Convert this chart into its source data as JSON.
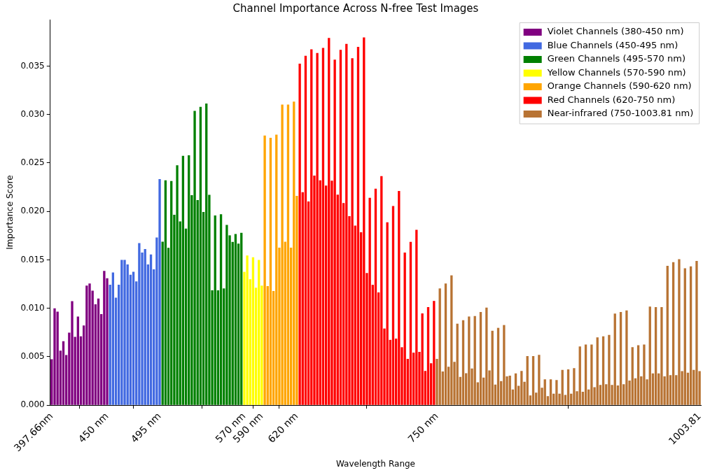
{
  "chart_data": {
    "type": "bar",
    "stacked": true,
    "title": "Channel Importance Across N-free Test Images",
    "xlabel": "Wavelength Range",
    "ylabel": "Importance Score",
    "legend": "top right",
    "categories": [
      "397.66nm",
      null,
      null,
      null,
      null,
      null,
      null,
      null,
      null,
      null,
      null,
      null,
      null,
      null,
      null,
      null,
      null,
      null,
      null,
      "450 nm",
      null,
      null,
      null,
      null,
      null,
      null,
      null,
      null,
      null,
      null,
      null,
      null,
      null,
      null,
      null,
      null,
      null,
      "495 nm",
      null,
      null,
      null,
      null,
      null,
      null,
      null,
      null,
      null,
      null,
      null,
      null,
      null,
      null,
      null,
      null,
      null,
      null,
      null,
      null,
      null,
      null,
      null,
      null,
      null,
      null,
      null,
      null,
      "570 nm",
      null,
      null,
      null,
      null,
      null,
      "590 nm",
      null,
      null,
      null,
      null,
      null,
      null,
      null,
      null,
      null,
      null,
      null,
      "620 nm",
      null,
      null,
      null,
      null,
      null,
      null,
      null,
      null,
      null,
      null,
      null,
      null,
      null,
      null,
      null,
      null,
      null,
      null,
      null,
      null,
      null,
      null,
      null,
      null,
      null,
      null,
      null,
      null,
      null,
      null,
      null,
      null,
      null,
      null,
      null,
      null,
      null,
      null,
      null,
      null,
      null,
      null,
      null,
      null,
      null,
      null,
      null,
      "750 nm",
      null,
      null,
      null,
      null,
      null,
      null,
      null,
      null,
      null,
      null,
      null,
      null,
      null,
      null,
      null,
      null,
      null,
      null,
      null,
      null,
      null,
      null,
      null,
      null,
      null,
      null,
      null,
      null,
      null,
      null,
      null,
      null,
      null,
      null,
      null,
      null,
      null,
      null,
      null,
      null,
      null,
      null,
      null,
      null,
      null,
      null,
      null,
      null,
      null,
      null,
      null,
      null,
      null,
      null,
      null,
      null,
      null,
      null,
      null,
      null,
      null,
      null,
      null,
      null,
      null,
      null,
      null,
      null,
      null,
      null,
      null,
      null,
      null,
      null,
      null,
      null,
      null,
      null,
      null,
      null,
      null,
      null,
      null,
      null,
      null,
      null,
      null,
      null,
      null,
      "1003.81"
    ],
    "ylim": [
      0,
      0.0398
    ],
    "yticks": [
      {
        "value": 0,
        "label": "0.000"
      },
      {
        "value": 0.005,
        "label": "0.005"
      },
      {
        "value": 0.01,
        "label": "0.010"
      },
      {
        "value": 0.015,
        "label": "0.015"
      },
      {
        "value": 0.02,
        "label": "0.020"
      },
      {
        "value": 0.025,
        "label": "0.025"
      },
      {
        "value": 0.03,
        "label": "0.030"
      },
      {
        "value": 0.035,
        "label": "0.035"
      }
    ],
    "series": [
      {
        "name": "Violet Channels (380-450 nm)",
        "color": "#800080",
        "values": [
          0.00475,
          0.01,
          0.00965,
          0.00563,
          0.00661,
          0.00518,
          0.00748,
          0.01074,
          0.00706,
          0.00915,
          0.0071,
          0.00822,
          0.01235,
          0.01255,
          0.01181,
          0.01041,
          0.011,
          0.0094,
          0.01385,
          0.0131,
          null,
          null,
          null,
          null,
          null,
          null,
          null,
          null,
          null,
          null,
          null,
          null,
          null,
          null,
          null,
          null,
          null,
          null,
          null,
          null,
          null,
          null,
          null,
          null,
          null,
          null,
          null,
          null,
          null,
          null,
          null,
          null,
          null,
          null,
          null,
          null,
          null,
          null,
          null,
          null,
          null,
          null,
          null,
          null,
          null,
          null,
          null,
          null,
          null,
          null,
          null,
          null,
          null,
          null,
          null,
          null,
          null,
          null,
          null,
          null,
          null,
          null,
          null,
          null,
          null,
          null,
          null,
          null,
          null,
          null,
          null,
          null,
          null,
          null,
          null,
          null,
          null,
          null,
          null,
          null,
          null,
          null,
          null,
          null,
          null,
          null,
          null,
          null,
          null,
          null,
          null,
          null,
          null,
          null,
          null,
          null,
          null,
          null,
          null,
          null,
          null,
          null,
          null,
          null,
          null,
          null,
          null,
          null,
          null,
          null,
          null,
          null,
          null,
          null,
          null,
          null,
          null,
          null,
          null,
          null,
          null,
          null,
          null,
          null,
          null,
          null,
          null,
          null,
          null,
          null,
          null,
          null,
          null,
          null,
          null,
          null,
          null,
          null,
          null,
          null,
          null,
          null,
          null,
          null,
          null,
          null,
          null,
          null,
          null,
          null,
          null,
          null,
          null,
          null,
          null,
          null,
          null,
          null,
          null,
          null,
          null,
          null,
          null,
          null,
          null,
          null,
          null,
          null,
          null,
          null,
          null,
          null,
          null,
          null,
          null,
          null,
          null,
          null,
          null,
          null,
          null,
          null,
          null,
          null,
          null,
          null,
          null,
          null,
          null,
          null,
          null,
          null,
          null,
          null,
          null,
          null,
          null,
          null,
          null,
          null,
          null,
          null,
          null
        ]
      },
      {
        "name": "Blue Channels (450-495 nm)",
        "color": "#4169e1",
        "values": [
          null,
          null,
          null,
          null,
          null,
          null,
          null,
          null,
          null,
          null,
          null,
          null,
          null,
          null,
          null,
          null,
          null,
          null,
          null,
          null,
          0.01243,
          0.0137,
          0.0111,
          0.01243,
          0.015,
          0.015,
          0.01452,
          0.01347,
          0.01376,
          0.01278,
          0.01673,
          0.01575,
          0.01611,
          0.01452,
          0.01556,
          0.01402,
          0.0173,
          0.02333,
          null,
          null,
          null,
          null,
          null,
          null,
          null,
          null,
          null,
          null,
          null,
          null,
          null,
          null,
          null,
          null,
          null,
          null,
          null,
          null,
          null,
          null,
          null,
          null,
          null,
          null,
          null,
          null,
          null,
          null,
          null,
          null,
          null,
          null,
          null,
          null,
          null,
          null,
          null,
          null,
          null,
          null,
          null,
          null,
          null,
          null,
          null,
          null,
          null,
          null,
          null,
          null,
          null,
          null,
          null,
          null,
          null,
          null,
          null,
          null,
          null,
          null,
          null,
          null,
          null,
          null,
          null,
          null,
          null,
          null,
          null,
          null,
          null,
          null,
          null,
          null,
          null,
          null,
          null,
          null,
          null,
          null,
          null,
          null,
          null,
          null,
          null,
          null,
          null,
          null,
          null,
          null,
          null,
          null,
          null,
          null,
          null,
          null,
          null,
          null,
          null,
          null,
          null,
          null,
          null,
          null,
          null,
          null,
          null,
          null,
          null,
          null,
          null,
          null,
          null,
          null,
          null,
          null,
          null,
          null,
          null,
          null,
          null,
          null,
          null,
          null,
          null,
          null,
          null,
          null,
          null,
          null,
          null,
          null,
          null,
          null,
          null,
          null,
          null,
          null,
          null,
          null,
          null,
          null,
          null,
          null,
          null,
          null,
          null,
          null,
          null,
          null,
          null,
          null,
          null,
          null,
          null,
          null,
          null,
          null,
          null,
          null,
          null,
          null,
          null,
          null,
          null,
          null,
          null,
          null,
          null,
          null,
          null,
          null,
          null,
          null,
          null,
          null,
          null,
          null,
          null,
          null,
          null,
          null,
          null
        ]
      },
      {
        "name": "Green Channels (495-570 nm)",
        "color": "#008000",
        "values": [
          null,
          null,
          null,
          null,
          null,
          null,
          null,
          null,
          null,
          null,
          null,
          null,
          null,
          null,
          null,
          null,
          null,
          null,
          null,
          null,
          null,
          null,
          null,
          null,
          null,
          null,
          null,
          null,
          null,
          null,
          null,
          null,
          null,
          null,
          null,
          null,
          null,
          null,
          0.01687,
          0.02321,
          0.01625,
          0.02314,
          0.01965,
          0.02476,
          0.01896,
          0.02573,
          0.01823,
          0.0258,
          0.02167,
          0.03037,
          0.02117,
          0.03079,
          0.01994,
          0.03113,
          0.02172,
          0.01186,
          0.01958,
          0.01186,
          0.0197,
          0.01205,
          0.0186,
          0.01753,
          0.01685,
          0.01766,
          0.01667,
          0.01779,
          null,
          null,
          null,
          null,
          null,
          null,
          null,
          null,
          null,
          null,
          null,
          null,
          null,
          null,
          null,
          null,
          null,
          null,
          null,
          null,
          null,
          null,
          null,
          null,
          null,
          null,
          null,
          null,
          null,
          null,
          null,
          null,
          null,
          null,
          null,
          null,
          null,
          null,
          null,
          null,
          null,
          null,
          null,
          null,
          null,
          null,
          null,
          null,
          null,
          null,
          null,
          null,
          null,
          null,
          null,
          null,
          null,
          null,
          null,
          null,
          null,
          null,
          null,
          null,
          null,
          null,
          null,
          null,
          null,
          null,
          null,
          null,
          null,
          null,
          null,
          null,
          null,
          null,
          null,
          null,
          null,
          null,
          null,
          null,
          null,
          null,
          null,
          null,
          null,
          null,
          null,
          null,
          null,
          null,
          null,
          null,
          null,
          null,
          null,
          null,
          null,
          null,
          null,
          null,
          null,
          null,
          null,
          null,
          null,
          null,
          null,
          null,
          null,
          null,
          null,
          null,
          null,
          null,
          null,
          null,
          null,
          null,
          null,
          null,
          null,
          null,
          null,
          null,
          null,
          null,
          null,
          null,
          null,
          null,
          null,
          null,
          null,
          null,
          null,
          null,
          null,
          null,
          null,
          null,
          null,
          null,
          null,
          null,
          null,
          null,
          null,
          null,
          null,
          null,
          null,
          null,
          null
        ]
      },
      {
        "name": "Yellow Channels (570-590 nm)",
        "color": "#ffff00",
        "values": [
          null,
          null,
          null,
          null,
          null,
          null,
          null,
          null,
          null,
          null,
          null,
          null,
          null,
          null,
          null,
          null,
          null,
          null,
          null,
          null,
          null,
          null,
          null,
          null,
          null,
          null,
          null,
          null,
          null,
          null,
          null,
          null,
          null,
          null,
          null,
          null,
          null,
          null,
          null,
          null,
          null,
          null,
          null,
          null,
          null,
          null,
          null,
          null,
          null,
          null,
          null,
          null,
          null,
          null,
          null,
          null,
          null,
          null,
          null,
          null,
          null,
          null,
          null,
          null,
          null,
          null,
          0.01376,
          0.01545,
          0.013,
          0.01527,
          0.01212,
          0.01499,
          0.01234,
          null,
          null,
          null,
          null,
          null,
          null,
          null,
          null,
          null,
          null,
          null,
          null,
          null,
          null,
          null,
          null,
          null,
          null,
          null,
          null,
          null,
          null,
          null,
          null,
          null,
          null,
          null,
          null,
          null,
          null,
          null,
          null,
          null,
          null,
          null,
          null,
          null,
          null,
          null,
          null,
          null,
          null,
          null,
          null,
          null,
          null,
          null,
          null,
          null,
          null,
          null,
          null,
          null,
          null,
          null,
          null,
          null,
          null,
          null,
          null,
          null,
          null,
          null,
          null,
          null,
          null,
          null,
          null,
          null,
          null,
          null,
          null,
          null,
          null,
          null,
          null,
          null,
          null,
          null,
          null,
          null,
          null,
          null,
          null,
          null,
          null,
          null,
          null,
          null,
          null,
          null,
          null,
          null,
          null,
          null,
          null,
          null,
          null,
          null,
          null,
          null,
          null,
          null,
          null,
          null,
          null,
          null,
          null,
          null,
          null,
          null,
          null,
          null,
          null,
          null,
          null,
          null,
          null,
          null,
          null,
          null,
          null,
          null,
          null,
          null,
          null,
          null,
          null,
          null,
          null,
          null,
          null,
          null,
          null,
          null,
          null,
          null,
          null,
          null,
          null,
          null,
          null,
          null,
          null,
          null,
          null,
          null,
          null,
          null,
          null
        ]
      },
      {
        "name": "Orange Channels (590-620 nm)",
        "color": "#ffa500",
        "values": [
          null,
          null,
          null,
          null,
          null,
          null,
          null,
          null,
          null,
          null,
          null,
          null,
          null,
          null,
          null,
          null,
          null,
          null,
          null,
          null,
          null,
          null,
          null,
          null,
          null,
          null,
          null,
          null,
          null,
          null,
          null,
          null,
          null,
          null,
          null,
          null,
          null,
          null,
          null,
          null,
          null,
          null,
          null,
          null,
          null,
          null,
          null,
          null,
          null,
          null,
          null,
          null,
          null,
          null,
          null,
          null,
          null,
          null,
          null,
          null,
          null,
          null,
          null,
          null,
          null,
          null,
          null,
          null,
          null,
          null,
          null,
          null,
          null,
          0.02784,
          0.01229,
          0.02759,
          0.01178,
          0.02792,
          0.01626,
          0.03103,
          0.01687,
          0.03103,
          0.01626,
          0.03133,
          0.0216,
          null,
          null,
          null,
          null,
          null,
          null,
          null,
          null,
          null,
          null,
          null,
          null,
          null,
          null,
          null,
          null,
          null,
          null,
          null,
          null,
          null,
          null,
          null,
          null,
          null,
          null,
          null,
          null,
          null,
          null,
          null,
          null,
          null,
          null,
          null,
          null,
          null,
          null,
          null,
          null,
          null,
          null,
          null,
          null,
          null,
          null,
          null,
          null,
          null,
          null,
          null,
          null,
          null,
          null,
          null,
          null,
          null,
          null,
          null,
          null,
          null,
          null,
          null,
          null,
          null,
          null,
          null,
          null,
          null,
          null,
          null,
          null,
          null,
          null,
          null,
          null,
          null,
          null,
          null,
          null,
          null,
          null,
          null,
          null,
          null,
          null,
          null,
          null,
          null,
          null,
          null,
          null,
          null,
          null,
          null,
          null,
          null,
          null,
          null,
          null,
          null,
          null,
          null,
          null,
          null,
          null,
          null,
          null,
          null,
          null,
          null,
          null,
          null,
          null,
          null,
          null,
          null,
          null,
          null,
          null,
          null,
          null,
          null,
          null,
          null,
          null,
          null,
          null,
          null,
          null,
          null,
          null,
          null,
          null,
          null,
          null,
          null,
          null
        ]
      },
      {
        "name": "Red Channels (620-750 nm)",
        "color": "#ff0000",
        "values": [
          null,
          null,
          null,
          null,
          null,
          null,
          null,
          null,
          null,
          null,
          null,
          null,
          null,
          null,
          null,
          null,
          null,
          null,
          null,
          null,
          null,
          null,
          null,
          null,
          null,
          null,
          null,
          null,
          null,
          null,
          null,
          null,
          null,
          null,
          null,
          null,
          null,
          null,
          null,
          null,
          null,
          null,
          null,
          null,
          null,
          null,
          null,
          null,
          null,
          null,
          null,
          null,
          null,
          null,
          null,
          null,
          null,
          null,
          null,
          null,
          null,
          null,
          null,
          null,
          null,
          null,
          null,
          null,
          null,
          null,
          null,
          null,
          null,
          null,
          null,
          null,
          null,
          null,
          null,
          null,
          null,
          null,
          null,
          null,
          null,
          0.03525,
          0.02199,
          0.03607,
          0.02102,
          0.03673,
          0.02369,
          0.03635,
          0.02321,
          0.03688,
          0.02267,
          0.0379,
          0.02317,
          0.03566,
          0.02173,
          0.03668,
          0.02087,
          0.03729,
          0.0195,
          0.03581,
          0.01853,
          0.03699,
          0.01784,
          0.03795,
          0.01364,
          0.02141,
          0.01242,
          0.02235,
          0.01163,
          0.02365,
          0.00791,
          0.01888,
          0.00674,
          0.02056,
          0.00687,
          0.0221,
          0.00598,
          0.01575,
          0.00478,
          0.01685,
          0.00542,
          0.0181,
          0.0055,
          0.00947,
          0.00354,
          0.01013,
          0.00432,
          0.01076,
          null,
          null,
          null,
          null,
          null,
          null,
          null,
          null,
          null,
          null,
          null,
          null,
          null,
          null,
          null,
          null,
          null,
          null,
          null,
          null,
          null,
          null,
          null,
          null,
          null,
          null,
          null,
          null,
          null,
          null,
          null,
          null,
          null,
          null,
          null,
          null,
          null,
          null,
          null,
          null,
          null,
          null,
          null,
          null,
          null,
          null,
          null,
          null,
          null,
          null,
          null,
          null,
          null,
          null,
          null,
          null,
          null,
          null,
          null,
          null,
          null,
          null,
          null,
          null,
          null,
          null,
          null,
          null,
          null,
          null,
          null,
          null,
          null,
          null,
          null,
          null,
          null,
          null,
          null,
          null,
          null,
          null,
          null,
          null,
          null,
          null,
          null,
          null,
          null,
          null,
          null
        ]
      },
      {
        "name": "Near-infrared (750-1003.81 nm)",
        "color": "#b87333",
        "values": [
          null,
          null,
          null,
          null,
          null,
          null,
          null,
          null,
          null,
          null,
          null,
          null,
          null,
          null,
          null,
          null,
          null,
          null,
          null,
          null,
          null,
          null,
          null,
          null,
          null,
          null,
          null,
          null,
          null,
          null,
          null,
          null,
          null,
          null,
          null,
          null,
          null,
          null,
          null,
          null,
          null,
          null,
          null,
          null,
          null,
          null,
          null,
          null,
          null,
          null,
          null,
          null,
          null,
          null,
          null,
          null,
          null,
          null,
          null,
          null,
          null,
          null,
          null,
          null,
          null,
          null,
          null,
          null,
          null,
          null,
          null,
          null,
          null,
          null,
          null,
          null,
          null,
          null,
          null,
          null,
          null,
          null,
          null,
          null,
          null,
          null,
          null,
          null,
          null,
          null,
          null,
          null,
          null,
          null,
          null,
          null,
          null,
          null,
          null,
          null,
          null,
          null,
          null,
          null,
          null,
          null,
          null,
          null,
          null,
          null,
          null,
          null,
          null,
          null,
          null,
          null,
          null,
          null,
          null,
          null,
          null,
          null,
          null,
          null,
          null,
          null,
          null,
          null,
          null,
          null,
          null,
          null,
          0.00478,
          0.01205,
          0.00347,
          0.01255,
          0.00397,
          0.0134,
          0.00447,
          0.00841,
          0.00292,
          0.00877,
          0.0033,
          0.00915,
          0.00378,
          0.0092,
          0.00235,
          0.00962,
          0.00285,
          0.01007,
          0.00359,
          0.00768,
          0.00212,
          0.00798,
          0.00249,
          0.00827,
          0.00297,
          0.00304,
          0.00162,
          0.00328,
          0.002,
          0.00354,
          0.00242,
          0.00506,
          0.001,
          0.00506,
          0.0013,
          0.0052,
          0.0018,
          0.00266,
          0.00093,
          0.00266,
          0.00119,
          0.00259,
          0.00119,
          0.00364,
          0.00105,
          0.00369,
          0.00119,
          0.00383,
          0.00143,
          0.00606,
          0.00138,
          0.00625,
          0.00162,
          0.00625,
          0.00185,
          0.00699,
          0.00209,
          0.00711,
          0.00216,
          0.00725,
          0.00209,
          0.00946,
          0.00204,
          0.00962,
          0.00216,
          0.00977,
          0.00254,
          0.00599,
          0.00278,
          0.00618,
          0.00297,
          0.00625,
          0.00266,
          0.01017,
          0.00328,
          0.01012,
          0.00328,
          0.01012,
          0.00297,
          0.01438,
          0.00309,
          0.01476,
          0.00309,
          0.01506,
          0.00351,
          0.01413,
          0.00335,
          0.01433,
          0.00364,
          0.01488,
          0.00351
        ]
      }
    ]
  }
}
